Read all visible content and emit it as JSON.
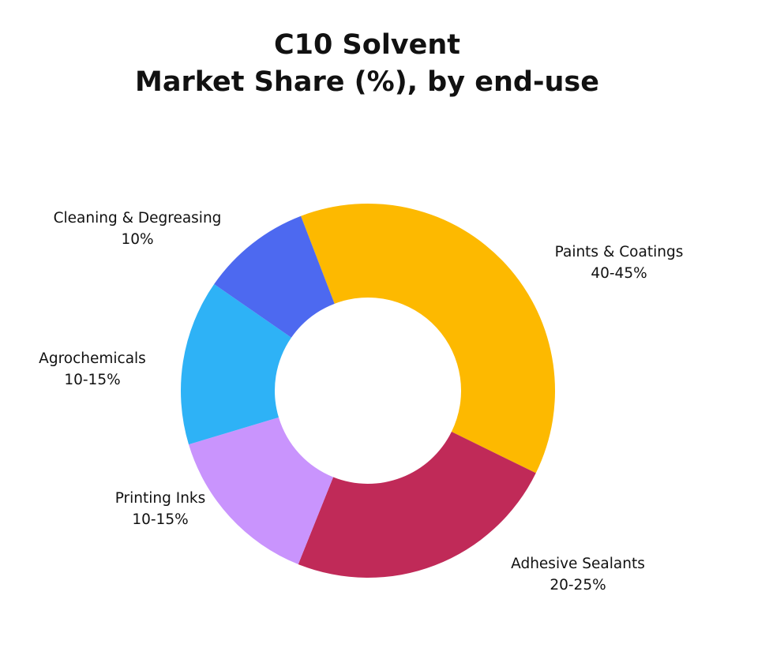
{
  "chart_data": {
    "type": "donut",
    "title": [
      "C10 Solvent",
      "Market Share (%), by end-use"
    ],
    "categories": [
      "Paints & Coatings",
      "Adhesive Sealants",
      "Printing Inks",
      "Agrochemicals",
      "Cleaning & Degreasing"
    ],
    "values": [
      40,
      25,
      15,
      15,
      10
    ],
    "value_labels": [
      "40-45%",
      "20-25%",
      "10-15%",
      "10-15%",
      "10%"
    ],
    "colors": [
      "#fdb900",
      "#c02a58",
      "#c994fd",
      "#2eb2f6",
      "#4d69f0"
    ]
  }
}
